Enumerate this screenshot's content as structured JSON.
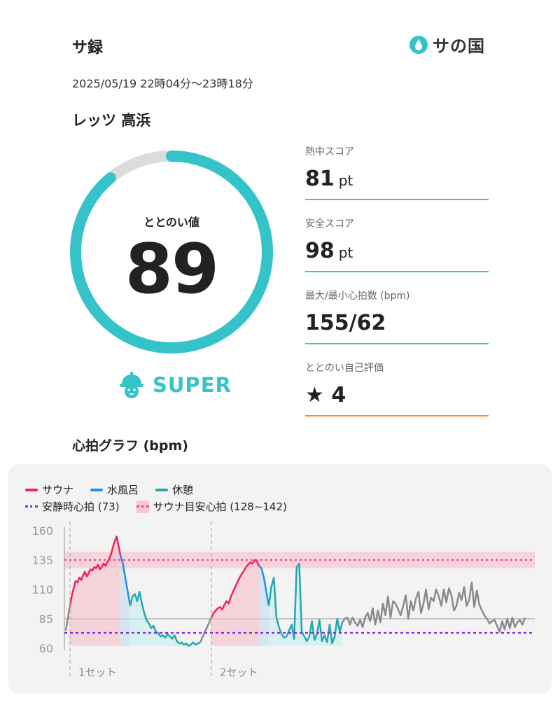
{
  "header": {
    "app_title": "サ録",
    "logo_text": "サの国",
    "datetime": "2025/05/19 22時04分〜23時18分",
    "facility": "レッツ 高浜"
  },
  "gauge": {
    "label": "ととのい値",
    "value": "89",
    "fraction": 0.89,
    "rank": "SUPER",
    "color": "#33c3c9",
    "track_color": "#dcdcdc"
  },
  "scores": [
    {
      "label": "熱中スコア",
      "value": "81",
      "unit": "pt",
      "line_color": "#3cc4c9"
    },
    {
      "label": "安全スコア",
      "value": "98",
      "unit": "pt",
      "line_color": "#3cc4c9"
    },
    {
      "label": "最大/最小心拍数 (bpm)",
      "value": "155/62",
      "unit": "",
      "line_color": "#3cc4c9"
    },
    {
      "label": "ととのい自己評価",
      "value": "★ 4",
      "unit": "",
      "line_color": "#f08a3c"
    }
  ],
  "graph_title": "心拍グラフ (bpm)",
  "legend": {
    "sauna": "サウナ",
    "water": "水風呂",
    "rest": "休憩",
    "resting_hr": "安静時心拍 (73)",
    "target_hr": "サウナ目安心拍 (128~142)"
  },
  "chart_data": {
    "type": "line",
    "ylim": [
      58,
      165
    ],
    "yticks": [
      "160",
      "135",
      "110",
      "85",
      "60"
    ],
    "ytick_values": [
      160,
      135,
      110,
      85,
      60
    ],
    "resting_hr": 73,
    "target_band": [
      128,
      142
    ],
    "target_line": 135,
    "set_labels": [
      "1セット",
      "2セット"
    ],
    "colors": {
      "sauna": "#f2215c",
      "water": "#2b8be6",
      "rest": "#22a9ad",
      "other": "#8a8a8a",
      "resting": "#8a2be2",
      "target": "#e84a7a"
    },
    "series": [
      {
        "name": "サウナ",
        "segment": 1,
        "values": [
          96,
          105,
          111,
          117,
          116,
          120,
          118,
          122,
          125,
          121,
          124,
          127,
          126,
          129,
          128,
          131,
          127,
          129,
          132,
          130,
          133,
          136,
          140,
          146,
          151,
          155,
          147,
          139
        ]
      },
      {
        "name": "水風呂",
        "segment": 1,
        "values": [
          139,
          132,
          120,
          108,
          96
        ]
      },
      {
        "name": "休憩",
        "segment": 1,
        "values": [
          96,
          104,
          106,
          100,
          108,
          98,
          90,
          84,
          81,
          77,
          79,
          74,
          73,
          70,
          71,
          69,
          72,
          70,
          68,
          71,
          66,
          64,
          65,
          63,
          64,
          62,
          63,
          65,
          63,
          64,
          65
        ]
      },
      {
        "name": "サウナ",
        "segment": 2,
        "values": [
          86,
          90,
          92,
          94,
          95,
          93,
          97,
          100,
          98,
          104,
          108,
          112,
          116,
          120,
          123,
          126,
          129,
          131,
          133,
          132,
          135,
          134,
          130
        ]
      },
      {
        "name": "水風呂",
        "segment": 2,
        "values": [
          130,
          128,
          120,
          108,
          96
        ]
      },
      {
        "name": "休憩",
        "segment": 2,
        "values": [
          96,
          112,
          120,
          86,
          78,
          72,
          69,
          70,
          75,
          80,
          68,
          129,
          132,
          74,
          70,
          66,
          70,
          83,
          67,
          72,
          84,
          66,
          71,
          65,
          80,
          64,
          70,
          85,
          74,
          82
        ]
      }
    ],
    "other": [
      85,
      86,
      80,
      86,
      82,
      79,
      84,
      78,
      86,
      90,
      83,
      94,
      80,
      92,
      82,
      98,
      88,
      104,
      86,
      100,
      98,
      93,
      88,
      96,
      105,
      85,
      100,
      92,
      102,
      108,
      90,
      98,
      110,
      93,
      103,
      100,
      110,
      104,
      96,
      110,
      99,
      111,
      105,
      92,
      96,
      107,
      101,
      112,
      96,
      101,
      116,
      95,
      109,
      97,
      92,
      88,
      85,
      81,
      83,
      84,
      79,
      74,
      83,
      76,
      85,
      77,
      86,
      78,
      82,
      84,
      80,
      86
    ]
  }
}
